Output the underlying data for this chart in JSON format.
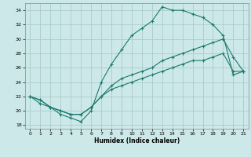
{
  "xlabel": "Humidex (Indice chaleur)",
  "ylabel": "",
  "background_color": "#cde8e8",
  "grid_color": "#aacccc",
  "line_color": "#1a7a6e",
  "xlim": [
    -0.5,
    21.5
  ],
  "ylim": [
    17.5,
    35.0
  ],
  "xticks": [
    0,
    1,
    2,
    3,
    4,
    5,
    6,
    7,
    8,
    9,
    10,
    11,
    12,
    13,
    14,
    15,
    16,
    17,
    18,
    19,
    20,
    21
  ],
  "yticks": [
    18,
    20,
    22,
    24,
    26,
    28,
    30,
    32,
    34
  ],
  "line1_x": [
    0,
    1,
    2,
    3,
    4,
    5,
    6,
    7,
    8,
    9,
    10,
    11,
    12,
    13,
    14,
    15,
    16,
    17,
    18,
    19,
    20,
    21
  ],
  "line1_y": [
    22,
    21,
    20.5,
    19.5,
    19,
    18.5,
    20,
    24,
    26.5,
    28.5,
    30.5,
    31.5,
    32.5,
    34.5,
    34,
    34,
    33.5,
    33,
    32,
    30.5,
    25,
    25.5
  ],
  "line2_x": [
    0,
    1,
    2,
    3,
    4,
    5,
    6,
    7,
    8,
    9,
    10,
    11,
    12,
    13,
    14,
    15,
    16,
    17,
    18,
    19,
    20,
    21
  ],
  "line2_y": [
    22,
    21.5,
    20.5,
    20,
    19.5,
    19.5,
    20.5,
    22,
    23.5,
    24.5,
    25,
    25.5,
    26,
    27,
    27.5,
    28,
    28.5,
    29,
    29.5,
    30,
    27.5,
    25.5
  ],
  "line3_x": [
    0,
    1,
    2,
    3,
    4,
    5,
    6,
    7,
    8,
    9,
    10,
    11,
    12,
    13,
    14,
    15,
    16,
    17,
    18,
    19,
    20,
    21
  ],
  "line3_y": [
    22,
    21.5,
    20.5,
    20,
    19.5,
    19.5,
    20.5,
    22,
    23,
    23.5,
    24,
    24.5,
    25,
    25.5,
    26,
    26.5,
    27,
    27,
    27.5,
    28,
    25.5,
    25.5
  ]
}
